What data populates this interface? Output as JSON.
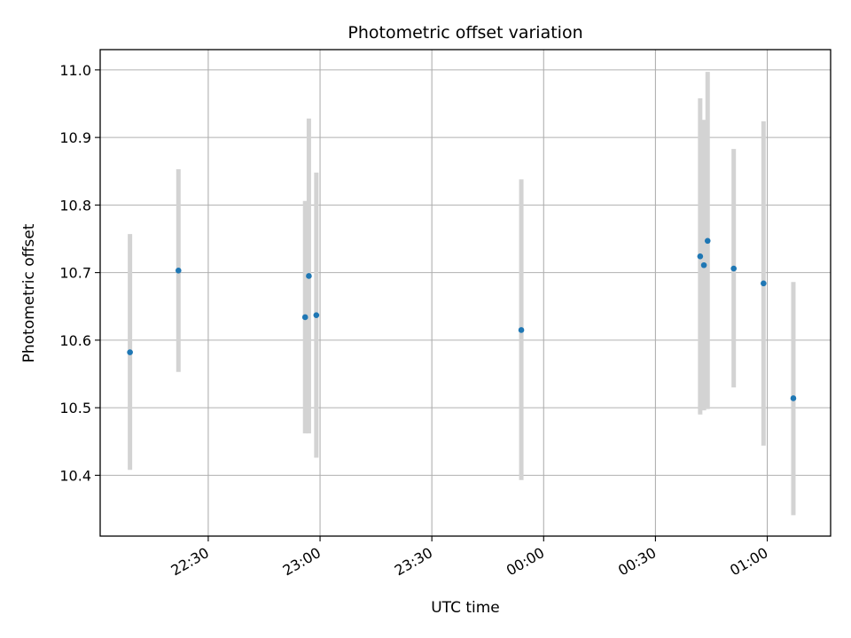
{
  "chart_data": {
    "type": "scatter",
    "title": "Photometric offset variation",
    "xlabel": "UTC time",
    "ylabel": "Photometric offset",
    "grid": true,
    "x_ticks": [
      "22:30",
      "23:00",
      "23:30",
      "00:00",
      "00:30",
      "01:00"
    ],
    "y_ticks": [
      "10.4",
      "10.5",
      "10.6",
      "10.7",
      "10.8",
      "10.9",
      "11.0"
    ],
    "y_tick_values": [
      10.4,
      10.5,
      10.6,
      10.7,
      10.8,
      10.9,
      11.0
    ],
    "xlim": [
      "22:01",
      "01:17"
    ],
    "ylim": [
      10.31,
      11.03
    ],
    "colors": {
      "points": "#1f77b4",
      "errorbars": "#d3d3d3",
      "grid": "#b0b0b0"
    },
    "points": [
      {
        "x": "22:09",
        "y": 10.582,
        "ymin": 10.408,
        "ymax": 10.757
      },
      {
        "x": "22:22",
        "y": 10.703,
        "ymin": 10.553,
        "ymax": 10.853
      },
      {
        "x": "22:56",
        "y": 10.634,
        "ymin": 10.462,
        "ymax": 10.806
      },
      {
        "x": "22:57",
        "y": 10.695,
        "ymin": 10.462,
        "ymax": 10.928
      },
      {
        "x": "22:59",
        "y": 10.637,
        "ymin": 10.426,
        "ymax": 10.848
      },
      {
        "x": "23:54",
        "y": 10.615,
        "ymin": 10.393,
        "ymax": 10.838
      },
      {
        "x": "00:42",
        "y": 10.724,
        "ymin": 10.49,
        "ymax": 10.958
      },
      {
        "x": "00:43",
        "y": 10.711,
        "ymin": 10.496,
        "ymax": 10.926
      },
      {
        "x": "00:44",
        "y": 10.747,
        "ymin": 10.498,
        "ymax": 10.997
      },
      {
        "x": "00:51",
        "y": 10.706,
        "ymin": 10.53,
        "ymax": 10.883
      },
      {
        "x": "00:59",
        "y": 10.684,
        "ymin": 10.444,
        "ymax": 10.924
      },
      {
        "x": "01:07",
        "y": 10.514,
        "ymin": 10.341,
        "ymax": 10.686
      }
    ]
  }
}
